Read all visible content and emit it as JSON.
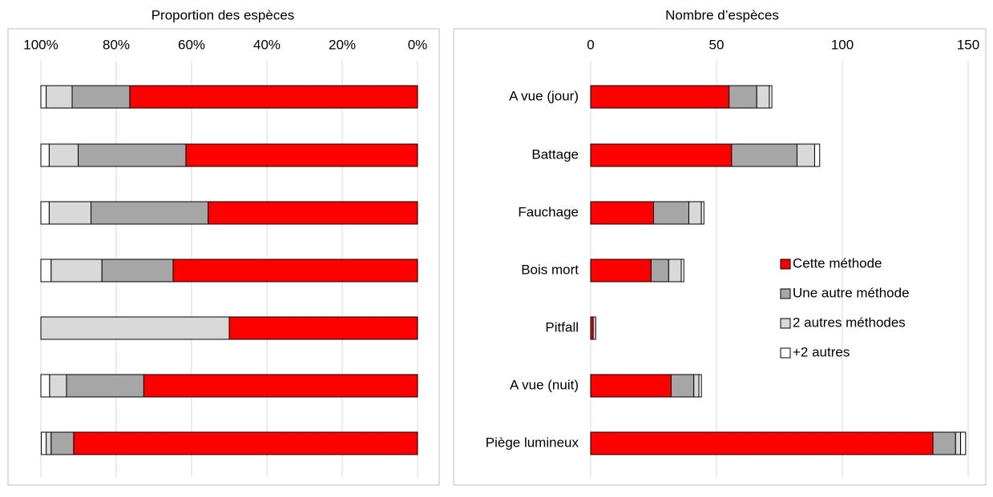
{
  "chart_data": [
    {
      "type": "stacked-barh",
      "title": "Proportion des espèces",
      "categories": [
        null,
        null,
        null,
        null,
        null,
        null,
        null
      ],
      "series": [
        {
          "color": "#ff0000",
          "values": [
            76.4,
            61.5,
            55.6,
            64.9,
            50,
            72.7,
            91.3
          ]
        },
        {
          "color": "#a6a6a6",
          "values": [
            15.3,
            28.6,
            31.1,
            18.9,
            0,
            20.5,
            6.0
          ]
        },
        {
          "color": "#d9d9d9",
          "values": [
            6.9,
            7.7,
            11.1,
            13.5,
            50,
            4.5,
            1.3
          ]
        },
        {
          "color": "#ffffff",
          "values": [
            1.4,
            2.2,
            2.2,
            2.7,
            0,
            2.3,
            1.3
          ]
        }
      ],
      "xlim": [
        100,
        0
      ],
      "xticks": [
        {
          "value": 100,
          "label": "100%"
        },
        {
          "value": 80,
          "label": "80%"
        },
        {
          "value": 60,
          "label": "60%"
        },
        {
          "value": 40,
          "label": "40%"
        },
        {
          "value": 20,
          "label": "20%"
        },
        {
          "value": 0,
          "label": "0%"
        }
      ],
      "grid": true
    },
    {
      "type": "stacked-barh",
      "title": "Nombre d’espèces",
      "categories": [
        "A vue (jour)",
        "Battage",
        "Fauchage",
        "Bois mort",
        "Pitfall",
        "A vue (nuit)",
        "Piège lumineux"
      ],
      "series": [
        {
          "name": "Cette méthode",
          "color": "#ff0000",
          "values": [
            55,
            56,
            25,
            24,
            1,
            32,
            136
          ]
        },
        {
          "name": "Une autre méthode",
          "color": "#a6a6a6",
          "values": [
            11,
            26,
            14,
            7,
            0,
            9,
            9
          ]
        },
        {
          "name": "2 autres méthodes",
          "color": "#d9d9d9",
          "values": [
            5,
            7,
            5,
            5,
            1,
            2,
            2
          ]
        },
        {
          "name": "+2 autres",
          "color": "#ffffff",
          "values": [
            1,
            2,
            1,
            1,
            0,
            1,
            2
          ]
        }
      ],
      "xlim": [
        0,
        157
      ],
      "xticks": [
        0,
        50,
        100,
        150
      ],
      "grid": true,
      "legend": "right"
    }
  ]
}
